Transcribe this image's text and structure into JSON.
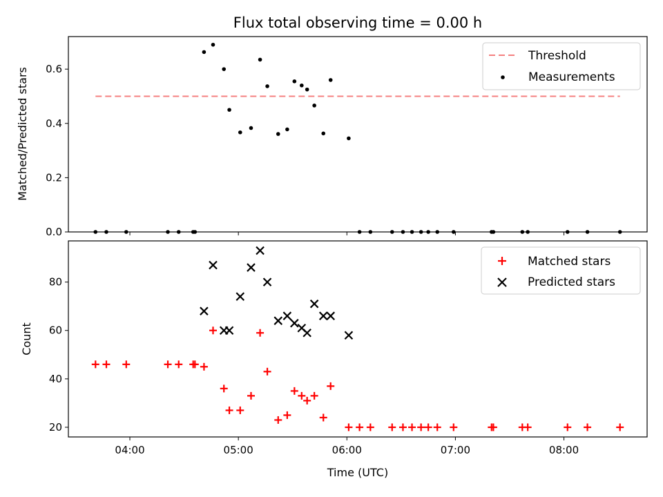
{
  "figure": {
    "title": "Flux total observing time = 0.00 h",
    "xlabel": "Time (UTC)"
  },
  "chart_data": [
    {
      "type": "scatter",
      "panel": "top",
      "ylabel": "Matched/Predicted stars",
      "xlim": [
        "03:26",
        "08:46"
      ],
      "ylim": [
        0,
        0.72
      ],
      "yticks": [
        "0.0",
        "0.2",
        "0.4",
        "0.6"
      ],
      "grid": false,
      "legend_position": "top-right",
      "threshold": {
        "name": "Threshold",
        "value": 0.5,
        "x_start": "03:41",
        "x_end": "08:31",
        "color": "#f47f7f",
        "style": "dashed"
      },
      "series": [
        {
          "name": "Measurements",
          "color": "#000000",
          "marker": "dot",
          "x": [
            "03:41",
            "03:47",
            "03:58",
            "04:21",
            "04:27",
            "04:35",
            "04:36",
            "04:41",
            "04:46",
            "04:52",
            "04:55",
            "05:01",
            "05:07",
            "05:12",
            "05:16",
            "05:22",
            "05:27",
            "05:31",
            "05:35",
            "05:38",
            "05:42",
            "05:47",
            "05:51",
            "06:01",
            "06:07",
            "06:13",
            "06:25",
            "06:31",
            "06:36",
            "06:41",
            "06:45",
            "06:50",
            "06:59",
            "07:20",
            "07:21",
            "07:37",
            "07:40",
            "08:02",
            "08:13",
            "08:31"
          ],
          "y": [
            0,
            0,
            0,
            0,
            0,
            0,
            0,
            0.663,
            0.69,
            0.6,
            0.45,
            0.367,
            0.383,
            0.635,
            0.537,
            0.361,
            0.378,
            0.555,
            0.54,
            0.525,
            0.466,
            0.363,
            0.56,
            0.345,
            0,
            0,
            0,
            0,
            0,
            0,
            0,
            0,
            0,
            0,
            0,
            0,
            0,
            0,
            0,
            0
          ]
        }
      ]
    },
    {
      "type": "scatter",
      "panel": "bottom",
      "ylabel": "Count",
      "xlim": [
        "03:26",
        "08:46"
      ],
      "ylim": [
        16,
        97
      ],
      "yticks": [
        "20",
        "40",
        "60",
        "80"
      ],
      "xticks": [
        "04:00",
        "05:00",
        "06:00",
        "07:00",
        "08:00"
      ],
      "grid": false,
      "legend_position": "top-right",
      "series": [
        {
          "name": "Matched stars",
          "color": "#ff0000",
          "marker": "plus",
          "x": [
            "03:41",
            "03:47",
            "03:58",
            "04:21",
            "04:27",
            "04:35",
            "04:36",
            "04:41",
            "04:46",
            "04:52",
            "04:55",
            "05:01",
            "05:07",
            "05:12",
            "05:16",
            "05:22",
            "05:27",
            "05:31",
            "05:35",
            "05:38",
            "05:42",
            "05:47",
            "05:51",
            "06:01",
            "06:07",
            "06:13",
            "06:25",
            "06:31",
            "06:36",
            "06:41",
            "06:45",
            "06:50",
            "06:59",
            "07:20",
            "07:21",
            "07:37",
            "07:40",
            "08:02",
            "08:13",
            "08:31"
          ],
          "y": [
            46,
            46,
            46,
            46,
            46,
            46,
            46,
            45,
            60,
            36,
            27,
            27,
            33,
            59,
            43,
            23,
            25,
            35,
            33,
            31,
            33,
            24,
            37,
            20,
            20,
            20,
            20,
            20,
            20,
            20,
            20,
            20,
            20,
            20,
            20,
            20,
            20,
            20,
            20,
            20
          ]
        },
        {
          "name": "Predicted stars",
          "color": "#000000",
          "marker": "x",
          "x": [
            "04:41",
            "04:46",
            "04:52",
            "04:55",
            "05:01",
            "05:07",
            "05:12",
            "05:16",
            "05:22",
            "05:27",
            "05:31",
            "05:35",
            "05:38",
            "05:42",
            "05:47",
            "05:51",
            "06:01"
          ],
          "y": [
            68,
            87,
            60,
            60,
            74,
            86,
            93,
            80,
            64,
            66,
            63,
            61,
            59,
            71,
            66,
            66,
            58
          ]
        }
      ]
    }
  ]
}
